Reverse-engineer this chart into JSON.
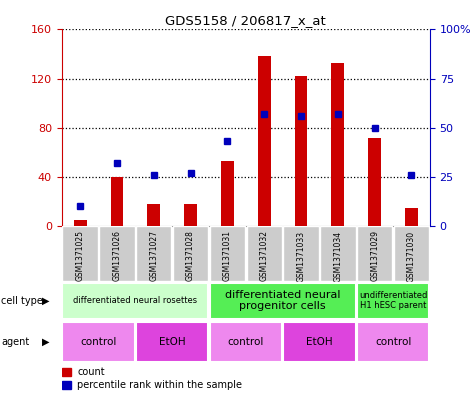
{
  "title": "GDS5158 / 206817_x_at",
  "samples": [
    "GSM1371025",
    "GSM1371026",
    "GSM1371027",
    "GSM1371028",
    "GSM1371031",
    "GSM1371032",
    "GSM1371033",
    "GSM1371034",
    "GSM1371029",
    "GSM1371030"
  ],
  "counts": [
    5,
    40,
    18,
    18,
    53,
    138,
    122,
    133,
    72,
    15
  ],
  "percentiles": [
    10,
    32,
    26,
    27,
    43,
    57,
    56,
    57,
    50,
    26
  ],
  "ylim_left": [
    0,
    160
  ],
  "ylim_right": [
    0,
    100
  ],
  "yticks_left": [
    0,
    40,
    80,
    120,
    160
  ],
  "yticks_right": [
    0,
    25,
    50,
    75,
    100
  ],
  "ytick_right_labels": [
    "0",
    "25",
    "50",
    "75",
    "100%"
  ],
  "bar_color": "#cc0000",
  "dot_color": "#0000bb",
  "cell_type_groups": [
    {
      "label": "differentiated neural rosettes",
      "start": 0,
      "end": 3,
      "color": "#ccffcc",
      "fontsize": 6
    },
    {
      "label": "differentiated neural\nprogenitor cells",
      "start": 4,
      "end": 7,
      "color": "#55ee55",
      "fontsize": 8
    },
    {
      "label": "undifferentiated\nH1 hESC parent",
      "start": 8,
      "end": 9,
      "color": "#55ee55",
      "fontsize": 6
    }
  ],
  "agent_groups": [
    {
      "label": "control",
      "start": 0,
      "end": 1,
      "color": "#ee88ee"
    },
    {
      "label": "EtOH",
      "start": 2,
      "end": 3,
      "color": "#dd44dd"
    },
    {
      "label": "control",
      "start": 4,
      "end": 5,
      "color": "#ee88ee"
    },
    {
      "label": "EtOH",
      "start": 6,
      "end": 7,
      "color": "#dd44dd"
    },
    {
      "label": "control",
      "start": 8,
      "end": 9,
      "color": "#ee88ee"
    }
  ],
  "left_tick_color": "#cc0000",
  "right_tick_color": "#0000bb",
  "cell_type_label": "cell type",
  "agent_label": "agent",
  "legend_count_label": "count",
  "legend_percentile_label": "percentile rank within the sample",
  "gray_col_color": "#cccccc",
  "col_border_color": "#ffffff"
}
